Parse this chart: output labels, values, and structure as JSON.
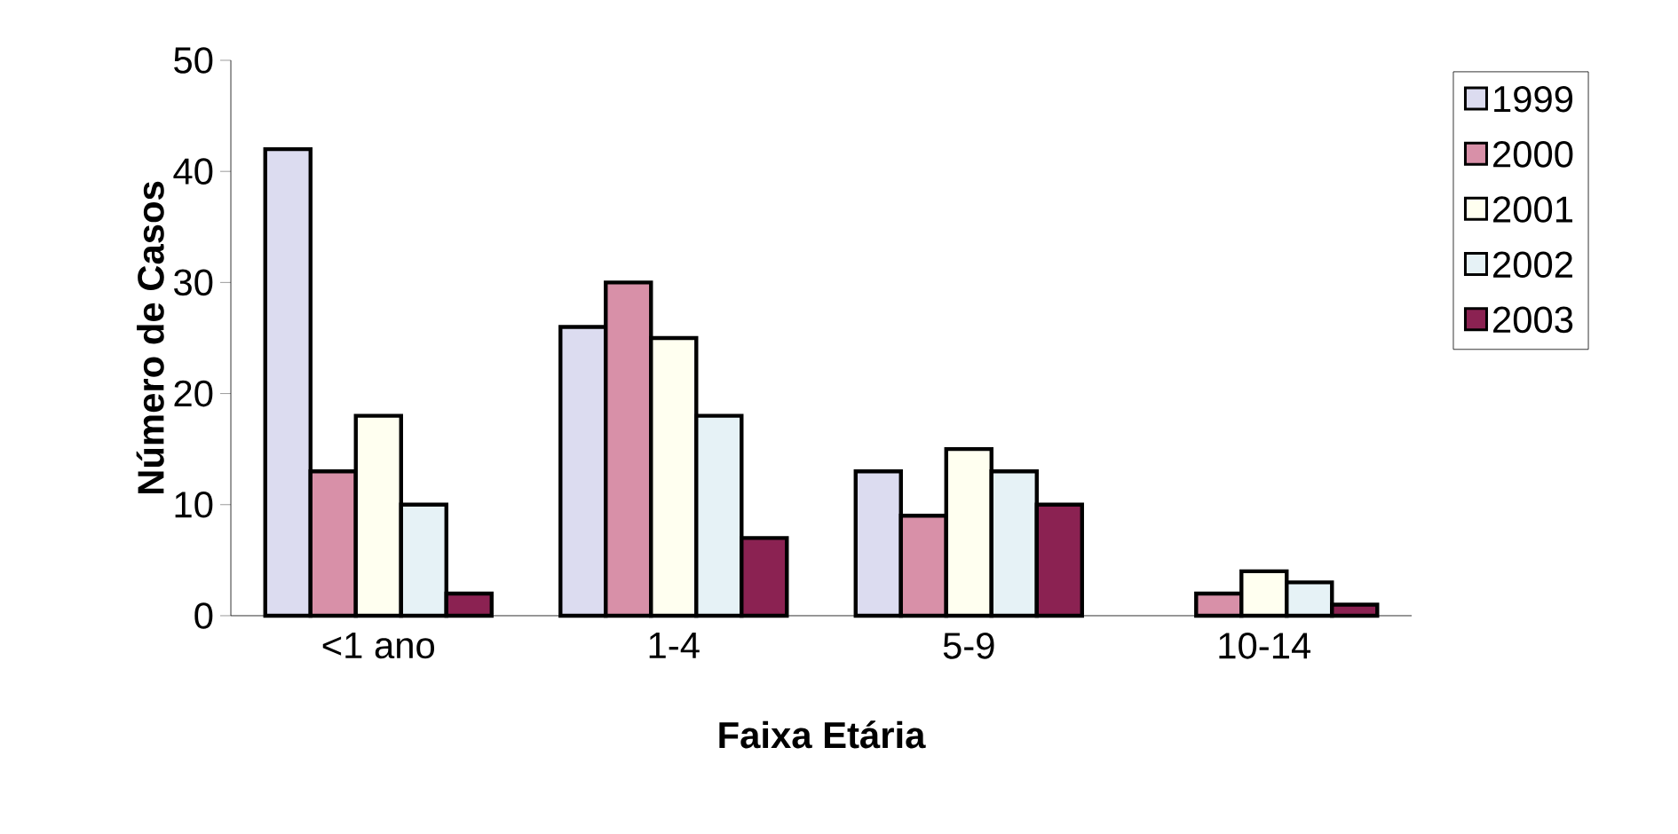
{
  "chart_data": {
    "type": "bar",
    "xlabel": "Faixa Etária",
    "ylabel": "Número de Casos",
    "categories": [
      "<1 ano",
      "1-4",
      "5-9",
      "10-14"
    ],
    "series": [
      {
        "name": "1999",
        "color": "#dcdcf0",
        "values": [
          42,
          26,
          13,
          null
        ]
      },
      {
        "name": "2000",
        "color": "#d890a8",
        "values": [
          13,
          30,
          9,
          2
        ]
      },
      {
        "name": "2001",
        "color": "#fffff0",
        "values": [
          18,
          25,
          15,
          4
        ]
      },
      {
        "name": "2002",
        "color": "#e6f2f6",
        "values": [
          10,
          18,
          13,
          3
        ]
      },
      {
        "name": "2003",
        "color": "#8b2252",
        "values": [
          2,
          7,
          10,
          1
        ]
      }
    ],
    "ylim": [
      0,
      50
    ],
    "yticks": [
      0,
      10,
      20,
      30,
      40,
      50
    ],
    "grid": false,
    "legend": "right"
  }
}
